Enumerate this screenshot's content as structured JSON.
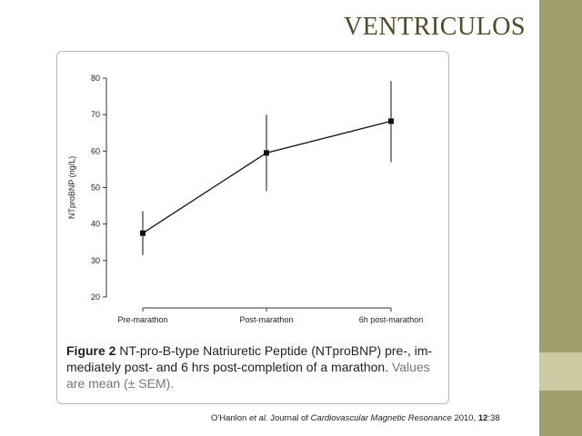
{
  "slide": {
    "title": "VENTRICULOS",
    "colors": {
      "sidebar": "#a39e6d",
      "sidebar_accent": "#cfcaa2",
      "title": "#4f4a2a"
    }
  },
  "figure": {
    "caption_label": "Figure 2",
    "caption_main": " NT-pro-B-type Natriuretic Peptide (NTproBNP) pre-, im-mediately post- and 6 hrs post-completion of a marathon",
    "caption_dot": ".",
    "caption_note": " Values are mean (± SEM)."
  },
  "citation": {
    "author": "O'Hanlon ",
    "etal": "et al.",
    "journal": " Journal of Cardiovascular Magnetic Resonance",
    "year": " 2010, ",
    "volume": "12",
    "pages": ":38"
  },
  "chart_data": {
    "type": "line",
    "categories": [
      "Pre-marathon",
      "Post-marathon",
      "6h post-marathon"
    ],
    "values": [
      37.5,
      59.5,
      68.2
    ],
    "error_upper": [
      43.5,
      70,
      79.2
    ],
    "error_lower": [
      31.5,
      49,
      57
    ],
    "ylabel": "NTproBNP (ng/L)",
    "ylim": [
      18,
      82
    ],
    "yticks": [
      20,
      30,
      40,
      50,
      60,
      70,
      80
    ],
    "grid": false,
    "marker": "square",
    "color": "#111111"
  }
}
